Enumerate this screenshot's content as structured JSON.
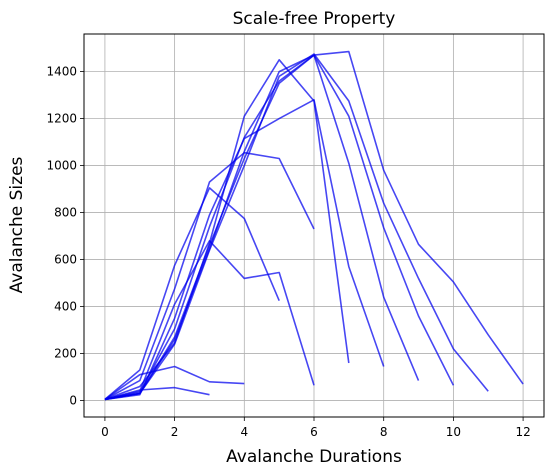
{
  "chart_data": {
    "type": "line",
    "title": "Scale-free Property",
    "xlabel": "Avalanche Durations",
    "ylabel": "Avalanche Sizes",
    "xlim": [
      -0.6,
      12.6
    ],
    "ylim": [
      -70,
      1560
    ],
    "xticks": [
      "0",
      "2",
      "4",
      "6",
      "8",
      "10",
      "12"
    ],
    "yticks": [
      "0",
      "200",
      "400",
      "600",
      "800",
      "1000",
      "1200",
      "1400"
    ],
    "grid": true,
    "color": "#0000ee",
    "series": [
      {
        "x": [
          0,
          1,
          2,
          3
        ],
        "values": [
          5,
          45,
          55,
          25
        ]
      },
      {
        "x": [
          0,
          1,
          2,
          3,
          4
        ],
        "values": [
          5,
          110,
          145,
          80,
          72
        ]
      },
      {
        "x": [
          0,
          1,
          2,
          3,
          4,
          5
        ],
        "values": [
          5,
          130,
          575,
          905,
          775,
          425
        ]
      },
      {
        "x": [
          0,
          1,
          2,
          3,
          4,
          5,
          6
        ],
        "values": [
          5,
          85,
          475,
          930,
          1055,
          1030,
          730
        ]
      },
      {
        "x": [
          0,
          1,
          2,
          3,
          4,
          5,
          6
        ],
        "values": [
          5,
          40,
          410,
          680,
          520,
          545,
          65
        ]
      },
      {
        "x": [
          0,
          1,
          2,
          3,
          4,
          5,
          6,
          7
        ],
        "values": [
          5,
          60,
          245,
          670,
          1210,
          1450,
          1275,
          160
        ]
      },
      {
        "x": [
          0,
          1,
          2,
          3,
          4,
          5,
          6,
          7,
          8
        ],
        "values": [
          5,
          25,
          350,
          790,
          1115,
          1200,
          1280,
          570,
          145
        ]
      },
      {
        "x": [
          0,
          1,
          2,
          3,
          4,
          5,
          6,
          7,
          8,
          9
        ],
        "values": [
          5,
          35,
          305,
          740,
          1120,
          1360,
          1470,
          1010,
          440,
          85
        ]
      },
      {
        "x": [
          0,
          1,
          2,
          3,
          4,
          5,
          6,
          7,
          8,
          9,
          10
        ],
        "values": [
          5,
          30,
          260,
          645,
          1060,
          1400,
          1470,
          1210,
          735,
          360,
          65
        ]
      },
      {
        "x": [
          0,
          1,
          2,
          3,
          4,
          5,
          6,
          7,
          8,
          9,
          10,
          11
        ],
        "values": [
          5,
          30,
          240,
          640,
          1000,
          1380,
          1475,
          1275,
          840,
          520,
          220,
          40
        ]
      },
      {
        "x": [
          0,
          1,
          2,
          3,
          4,
          5,
          6,
          7,
          8,
          9,
          10,
          11,
          12
        ],
        "values": [
          5,
          30,
          270,
          660,
          1030,
          1350,
          1470,
          1485,
          980,
          665,
          505,
          280,
          70
        ]
      }
    ]
  }
}
